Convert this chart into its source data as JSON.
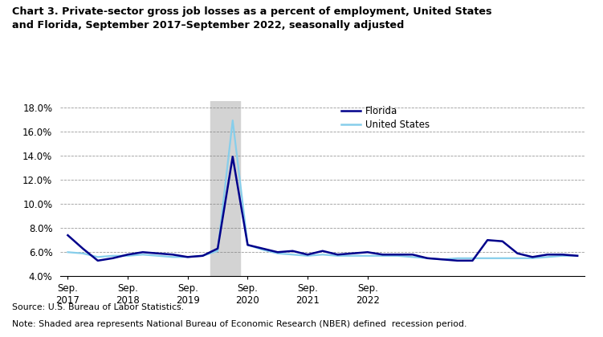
{
  "title": "Chart 3. Private-sector gross job losses as a percent of employment, United States\nand Florida, September 2017–September 2022, seasonally adjusted",
  "florida_label": "Florida",
  "us_label": "United States",
  "florida_color": "#00008B",
  "us_color": "#87CEEB",
  "recession_color": "#D3D3D3",
  "recession_start": 9.5,
  "recession_end": 11.5,
  "ylim": [
    4.0,
    18.5
  ],
  "yticks": [
    4.0,
    6.0,
    8.0,
    10.0,
    12.0,
    14.0,
    16.0,
    18.0
  ],
  "x_tick_positions": [
    0,
    4,
    8,
    12,
    16,
    20
  ],
  "x_tick_labels": [
    "Sep.\n2017",
    "Sep.\n2018",
    "Sep.\n2019",
    "Sep.\n2020",
    "Sep.\n2021",
    "Sep.\n2022"
  ],
  "source_text": "Source: U.S. Bureau of Labor Statistics.",
  "note_text": "Note: Shaded area represents National Bureau of Economic Research (NBER) defined  recession period.",
  "florida_data": [
    7.4,
    6.3,
    5.3,
    5.5,
    5.8,
    6.0,
    5.9,
    5.8,
    5.6,
    5.7,
    6.3,
    13.9,
    6.6,
    6.3,
    6.0,
    6.1,
    5.8,
    6.1,
    5.8,
    5.9,
    6.0,
    5.8,
    5.8,
    5.8,
    5.5,
    5.4,
    5.3,
    5.3,
    7.0,
    6.9,
    5.9,
    5.6,
    5.8,
    5.8,
    5.7
  ],
  "us_data": [
    6.0,
    5.9,
    5.6,
    5.7,
    5.7,
    5.8,
    5.7,
    5.6,
    5.6,
    5.7,
    6.1,
    16.9,
    6.6,
    6.2,
    5.9,
    5.8,
    5.7,
    5.8,
    5.7,
    5.7,
    5.7,
    5.7,
    5.7,
    5.6,
    5.5,
    5.4,
    5.5,
    5.5,
    5.5,
    5.5,
    5.5,
    5.5,
    5.6,
    5.7,
    5.7
  ]
}
